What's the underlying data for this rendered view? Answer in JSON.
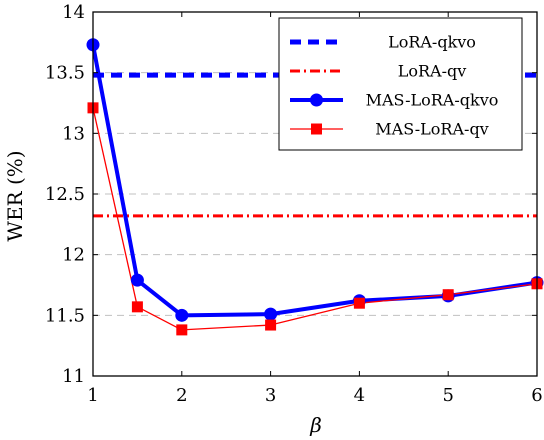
{
  "chart_data": {
    "type": "line",
    "xlabel": "β",
    "ylabel": "WER (%)",
    "xlim": [
      1,
      6
    ],
    "ylim": [
      11,
      14
    ],
    "xticks": [
      "1",
      "2",
      "3",
      "4",
      "5",
      "6"
    ],
    "yticks": [
      "11",
      "11.5",
      "12",
      "12.5",
      "13",
      "13.5",
      "14"
    ],
    "grid": "horizontal dashed",
    "legend_position": "top-right",
    "series": [
      {
        "name": "LoRA-qkvo",
        "style": "dashed",
        "color": "#0000ff",
        "x": [
          1,
          6
        ],
        "values": [
          13.48,
          13.48
        ]
      },
      {
        "name": "LoRA-qv",
        "style": "dashdot",
        "color": "#ff0000",
        "x": [
          1,
          6
        ],
        "values": [
          12.32,
          12.32
        ]
      },
      {
        "name": "MAS-LoRA-qkvo",
        "style": "solid",
        "marker": "circle",
        "color": "#0000ff",
        "x": [
          1,
          1.5,
          2,
          3,
          4,
          5,
          6
        ],
        "values": [
          13.73,
          11.79,
          11.5,
          11.51,
          11.62,
          11.66,
          11.77
        ]
      },
      {
        "name": "MAS-LoRA-qv",
        "style": "solid",
        "marker": "square",
        "color": "#ff0000",
        "x": [
          1,
          1.5,
          2,
          3,
          4,
          5,
          6
        ],
        "values": [
          13.21,
          11.57,
          11.38,
          11.42,
          11.6,
          11.67,
          11.76
        ]
      }
    ]
  }
}
